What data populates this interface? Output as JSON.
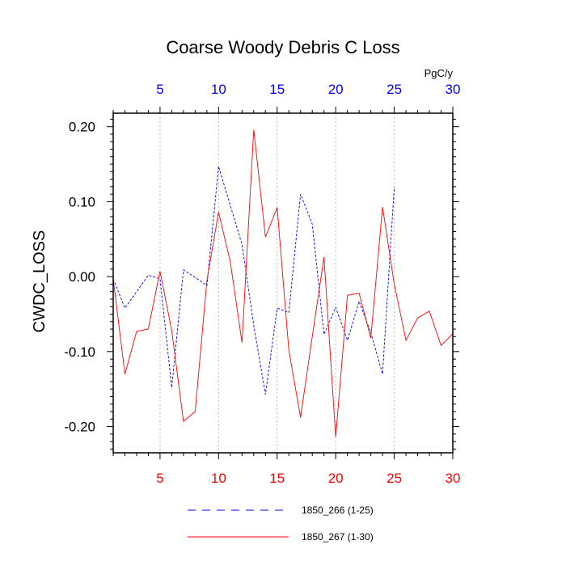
{
  "chart_data": {
    "type": "line",
    "title": "Coarse Woody Debris C Loss",
    "ylabel": "CWDC_LOSS",
    "units": "PgC/y",
    "xlim": [
      1,
      30
    ],
    "ylim": [
      -0.235,
      0.218
    ],
    "x_ticks": [
      5,
      10,
      15,
      20,
      25,
      30
    ],
    "y_ticks": [
      0.2,
      0.1,
      0.0,
      -0.1,
      -0.2
    ],
    "y_tick_labels": [
      "0.20",
      "0.10",
      "0.00",
      "-0.10",
      "-0.20"
    ],
    "top_axis_color": "#0000ff",
    "bottom_axis_color": "#ff0000",
    "grid_x": true,
    "legend_position": "bottom",
    "series": [
      {
        "name": "1850_266 (1-25)",
        "color": "#0000ff",
        "dash": "dashed",
        "x": [
          1,
          2,
          3,
          4,
          5,
          6,
          7,
          8,
          9,
          10,
          11,
          12,
          13,
          14,
          15,
          16,
          17,
          18,
          19,
          20,
          21,
          22,
          23,
          24,
          25
        ],
        "values": [
          -0.003,
          -0.042,
          -0.02,
          0.002,
          -0.003,
          -0.148,
          0.009,
          -0.001,
          -0.012,
          0.147,
          0.095,
          0.043,
          -0.065,
          -0.157,
          -0.042,
          -0.048,
          0.11,
          0.07,
          -0.077,
          -0.041,
          -0.085,
          -0.033,
          -0.075,
          -0.13,
          0.12
        ]
      },
      {
        "name": "1850_267 (1-30)",
        "color": "#ff0000",
        "dash": "solid",
        "x": [
          1,
          2,
          3,
          4,
          5,
          6,
          7,
          8,
          9,
          10,
          11,
          12,
          13,
          14,
          15,
          16,
          17,
          18,
          19,
          20,
          21,
          22,
          23,
          24,
          25,
          26,
          27,
          28,
          29,
          30
        ],
        "values": [
          -0.003,
          -0.13,
          -0.073,
          -0.07,
          0.007,
          -0.072,
          -0.193,
          -0.18,
          -0.005,
          0.086,
          0.02,
          -0.088,
          0.196,
          0.053,
          0.092,
          -0.098,
          -0.188,
          -0.08,
          0.026,
          -0.214,
          -0.025,
          -0.022,
          -0.082,
          0.093,
          -0.01,
          -0.085,
          -0.055,
          -0.046,
          -0.092,
          -0.076
        ]
      }
    ]
  }
}
